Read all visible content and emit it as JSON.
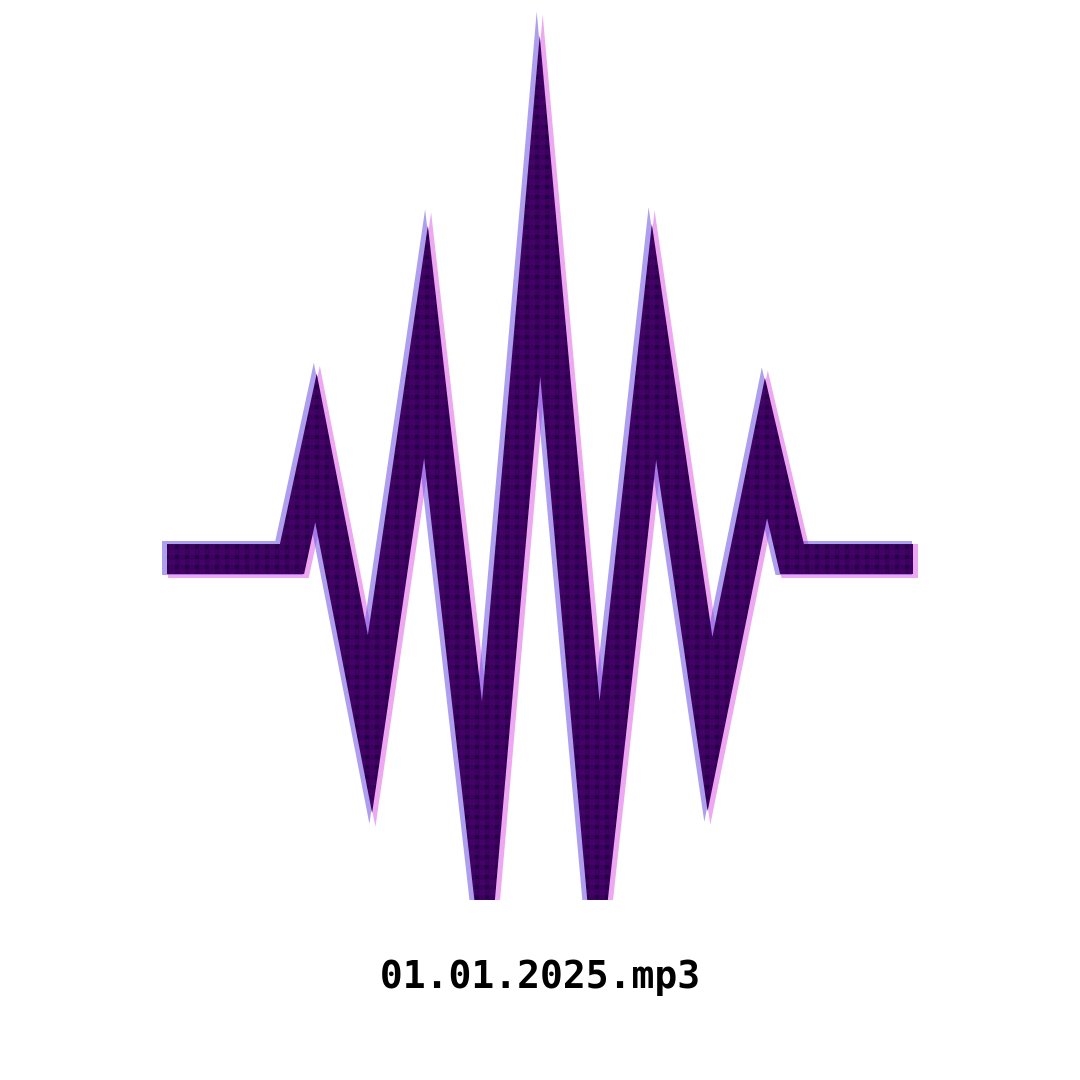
{
  "file": {
    "name": "01.01.2025.mp3",
    "icon": "audio-waveform-icon"
  },
  "colors": {
    "background": "#ffffff",
    "waveform_stroke": "#3d0060",
    "waveform_fringe_magenta": "#e060e8",
    "waveform_fringe_blue": "#6a50e0",
    "waveform_speckle": "#0a0030",
    "filename_text": "#000000"
  }
}
